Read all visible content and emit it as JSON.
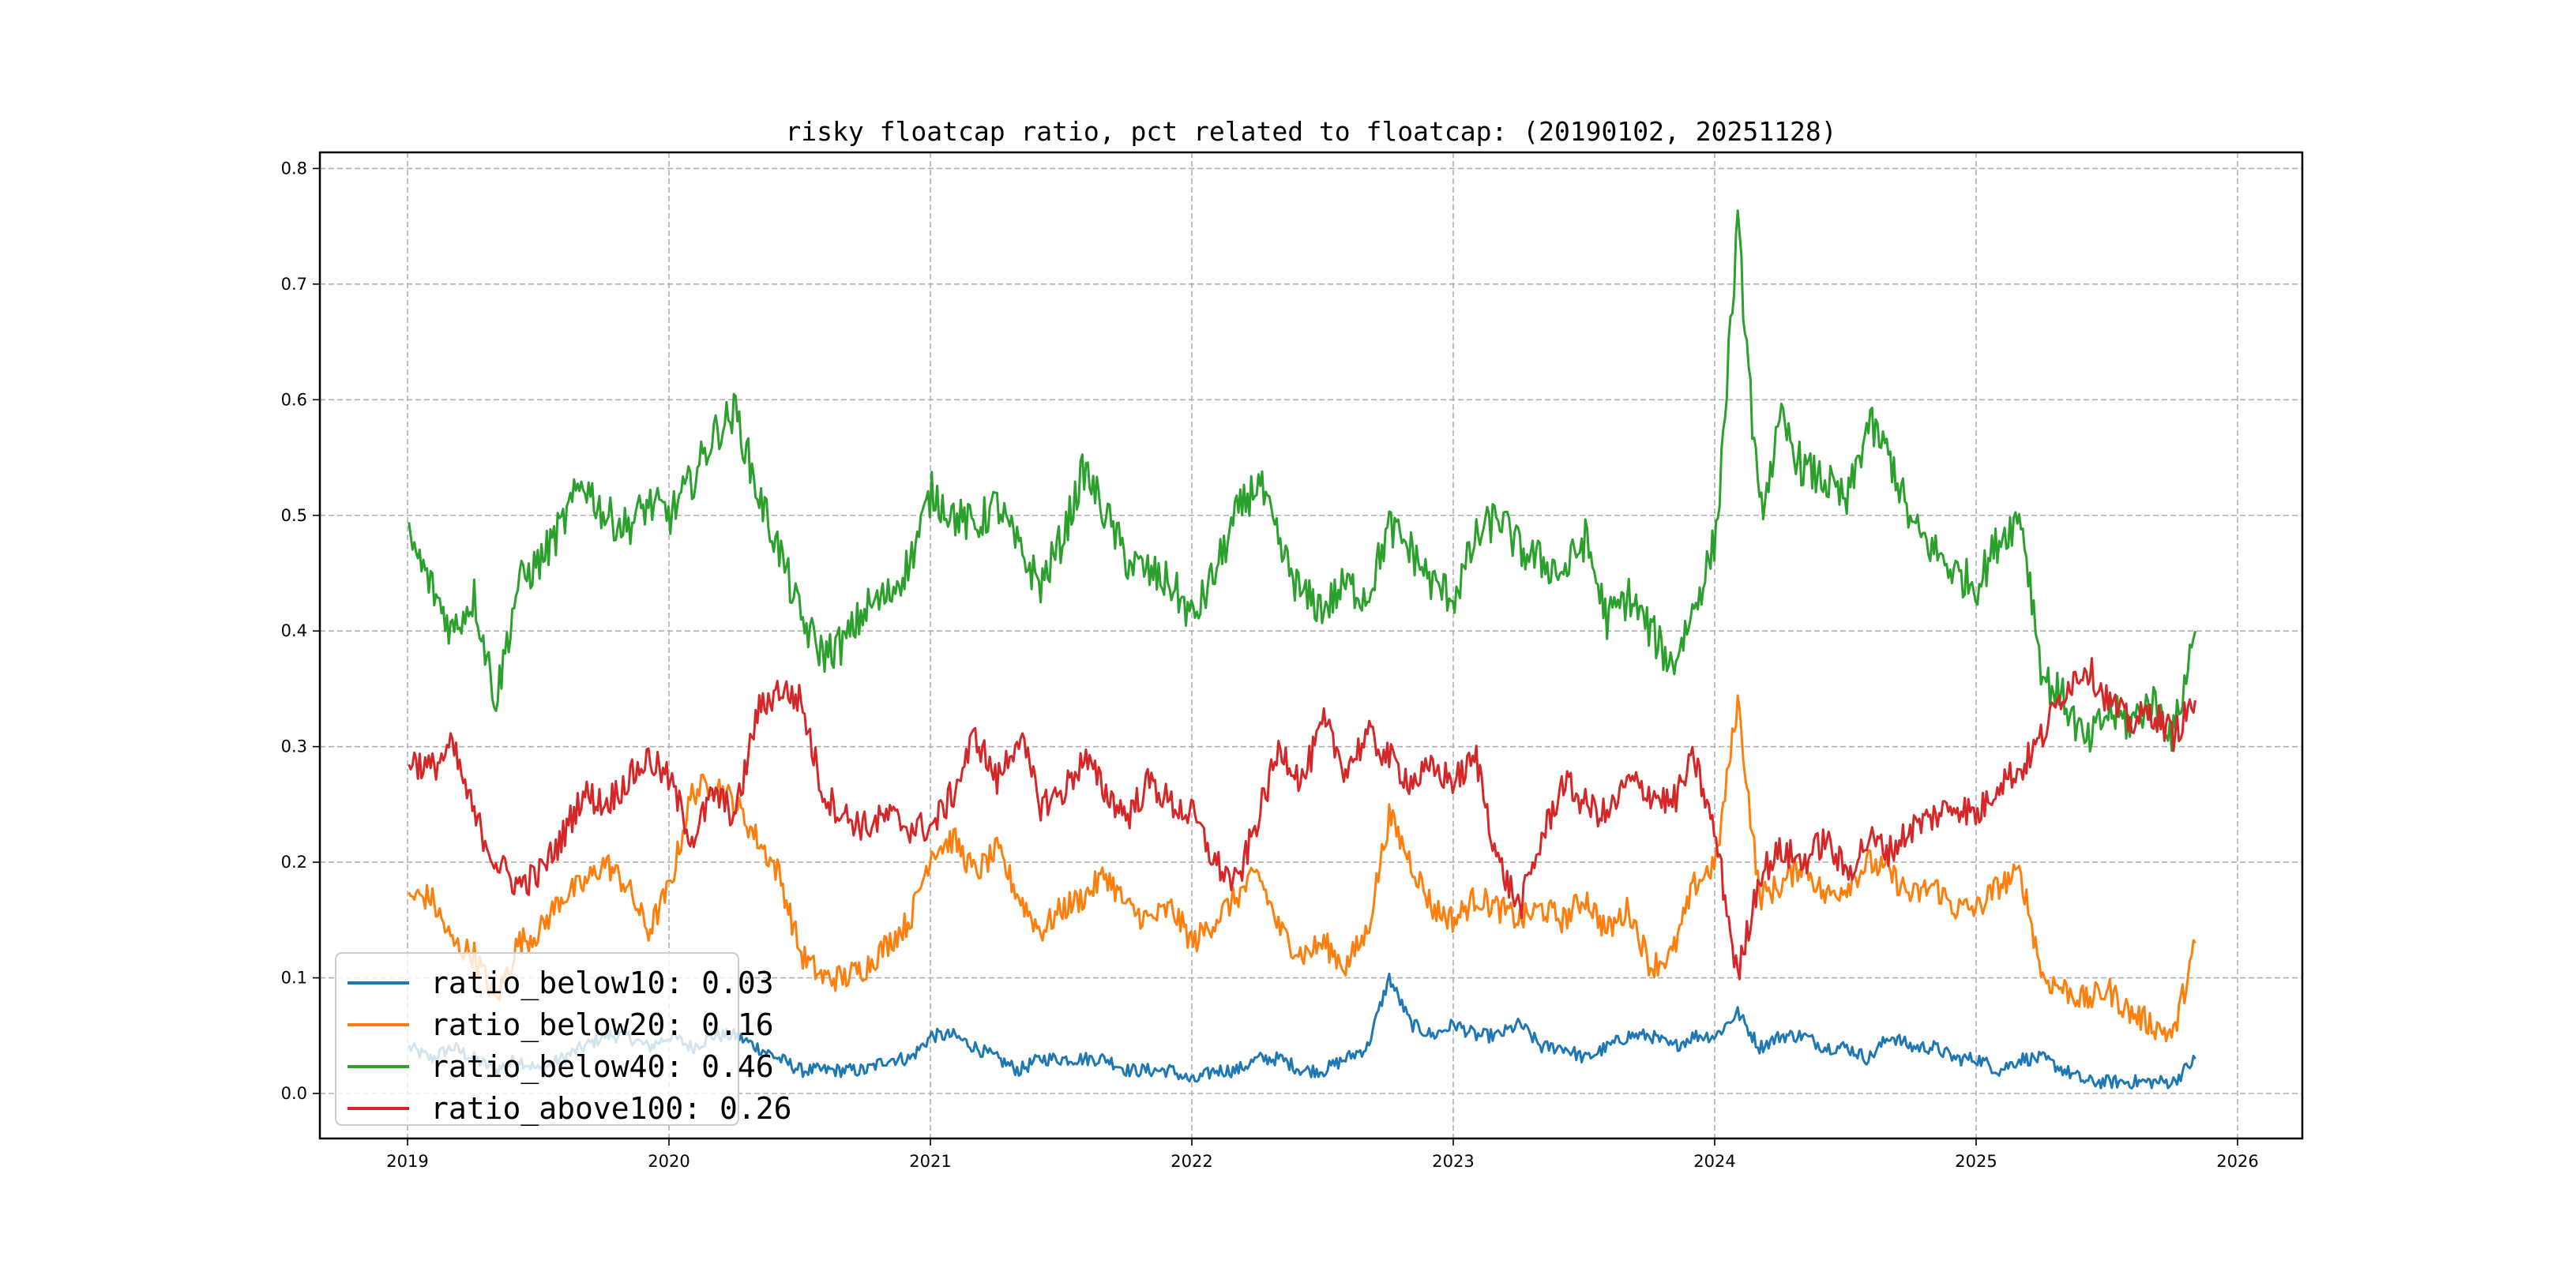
{
  "chart_data": {
    "type": "line",
    "title": "risky floatcap ratio, pct related to floatcap: (20190102, 20251128)",
    "xlabel": "",
    "ylabel": "",
    "xlim": [
      2018.85,
      2026.25
    ],
    "ylim": [
      -0.04,
      0.82
    ],
    "grid": true,
    "legend_position": "lower-left",
    "x_ticks": [
      "2019",
      "2020",
      "2021",
      "2022",
      "2023",
      "2024",
      "2025",
      "2026"
    ],
    "y_ticks": [
      "0.0",
      "0.1",
      "0.2",
      "0.3",
      "0.4",
      "0.5",
      "0.6",
      "0.7",
      "0.8"
    ],
    "x_start": "2019-01",
    "x_step": "monthly",
    "series": [
      {
        "name": "ratio_below10",
        "legend": "ratio_below10: 0.03",
        "color": "#1f77b4",
        "values": [
          0.04,
          0.03,
          0.04,
          0.03,
          0.02,
          0.03,
          0.02,
          0.03,
          0.04,
          0.05,
          0.05,
          0.04,
          0.05,
          0.04,
          0.05,
          0.05,
          0.04,
          0.03,
          0.02,
          0.02,
          0.02,
          0.02,
          0.03,
          0.03,
          0.05,
          0.05,
          0.04,
          0.03,
          0.02,
          0.03,
          0.03,
          0.03,
          0.03,
          0.02,
          0.02,
          0.02,
          0.01,
          0.02,
          0.02,
          0.03,
          0.03,
          0.02,
          0.02,
          0.03,
          0.04,
          0.1,
          0.06,
          0.05,
          0.06,
          0.05,
          0.05,
          0.06,
          0.04,
          0.04,
          0.03,
          0.04,
          0.05,
          0.05,
          0.04,
          0.05,
          0.05,
          0.07,
          0.04,
          0.05,
          0.05,
          0.04,
          0.04,
          0.03,
          0.05,
          0.04,
          0.04,
          0.03,
          0.03,
          0.02,
          0.03,
          0.03,
          0.02,
          0.01,
          0.01,
          0.01,
          0.01,
          0.01,
          0.03
        ]
      },
      {
        "name": "ratio_below20",
        "legend": "ratio_below20: 0.16",
        "color": "#ff7f0e",
        "values": [
          0.17,
          0.17,
          0.13,
          0.12,
          0.08,
          0.13,
          0.14,
          0.17,
          0.18,
          0.2,
          0.18,
          0.14,
          0.18,
          0.26,
          0.27,
          0.25,
          0.22,
          0.19,
          0.12,
          0.1,
          0.1,
          0.11,
          0.13,
          0.15,
          0.21,
          0.22,
          0.19,
          0.21,
          0.17,
          0.14,
          0.16,
          0.17,
          0.19,
          0.16,
          0.15,
          0.16,
          0.13,
          0.15,
          0.17,
          0.19,
          0.14,
          0.12,
          0.13,
          0.11,
          0.14,
          0.24,
          0.2,
          0.16,
          0.15,
          0.17,
          0.16,
          0.15,
          0.16,
          0.15,
          0.17,
          0.14,
          0.16,
          0.11,
          0.12,
          0.18,
          0.2,
          0.34,
          0.17,
          0.18,
          0.2,
          0.17,
          0.18,
          0.2,
          0.19,
          0.17,
          0.18,
          0.16,
          0.16,
          0.18,
          0.19,
          0.1,
          0.09,
          0.08,
          0.09,
          0.07,
          0.06,
          0.05,
          0.13
        ]
      },
      {
        "name": "ratio_below40",
        "legend": "ratio_below40: 0.46",
        "color": "#2ca02c",
        "values": [
          0.48,
          0.44,
          0.4,
          0.43,
          0.34,
          0.44,
          0.46,
          0.49,
          0.53,
          0.5,
          0.49,
          0.51,
          0.5,
          0.53,
          0.57,
          0.59,
          0.52,
          0.47,
          0.41,
          0.38,
          0.39,
          0.42,
          0.43,
          0.46,
          0.52,
          0.5,
          0.49,
          0.51,
          0.47,
          0.44,
          0.48,
          0.54,
          0.5,
          0.46,
          0.45,
          0.44,
          0.41,
          0.45,
          0.5,
          0.53,
          0.47,
          0.43,
          0.42,
          0.44,
          0.43,
          0.49,
          0.47,
          0.44,
          0.43,
          0.48,
          0.5,
          0.47,
          0.46,
          0.45,
          0.48,
          0.41,
          0.43,
          0.4,
          0.37,
          0.42,
          0.48,
          0.75,
          0.5,
          0.58,
          0.54,
          0.53,
          0.51,
          0.58,
          0.55,
          0.49,
          0.47,
          0.45,
          0.44,
          0.48,
          0.5,
          0.36,
          0.34,
          0.3,
          0.33,
          0.32,
          0.34,
          0.31,
          0.4
        ]
      },
      {
        "name": "ratio_above100",
        "legend": "ratio_above100: 0.26",
        "color": "#d62728",
        "values": [
          0.29,
          0.28,
          0.3,
          0.24,
          0.2,
          0.18,
          0.19,
          0.22,
          0.26,
          0.25,
          0.27,
          0.29,
          0.27,
          0.22,
          0.26,
          0.24,
          0.33,
          0.35,
          0.34,
          0.26,
          0.24,
          0.23,
          0.24,
          0.23,
          0.23,
          0.26,
          0.31,
          0.27,
          0.31,
          0.25,
          0.26,
          0.29,
          0.26,
          0.24,
          0.27,
          0.25,
          0.24,
          0.2,
          0.18,
          0.24,
          0.3,
          0.27,
          0.32,
          0.28,
          0.31,
          0.29,
          0.27,
          0.28,
          0.27,
          0.29,
          0.2,
          0.16,
          0.22,
          0.27,
          0.25,
          0.24,
          0.27,
          0.26,
          0.25,
          0.29,
          0.22,
          0.1,
          0.19,
          0.21,
          0.2,
          0.22,
          0.19,
          0.22,
          0.21,
          0.23,
          0.24,
          0.25,
          0.24,
          0.27,
          0.28,
          0.31,
          0.35,
          0.37,
          0.34,
          0.32,
          0.33,
          0.31,
          0.34
        ]
      }
    ]
  }
}
